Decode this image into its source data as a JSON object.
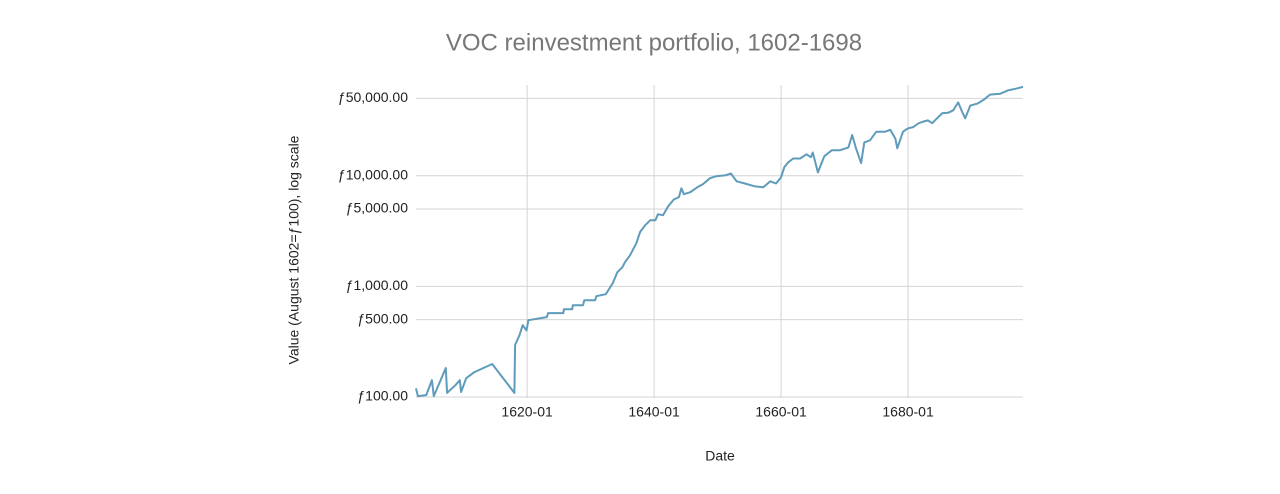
{
  "chart_data": {
    "type": "line",
    "title": "VOC reinvestment portfolio, 1602-1698",
    "x_label": "Date",
    "y_label": "Value (August 1602=ƒ100), log scale",
    "color": "#5f9bba",
    "log_y": true,
    "grid": true,
    "xlim": [
      1602.5,
      1698.1
    ],
    "ylim": [
      98,
      66000
    ],
    "xticks": [
      {
        "value": 1620,
        "label": "1620-01"
      },
      {
        "value": 1640,
        "label": "1640-01"
      },
      {
        "value": 1660,
        "label": "1660-01"
      },
      {
        "value": 1680,
        "label": "1680-01"
      }
    ],
    "yticks": [
      {
        "value": 100,
        "label": "ƒ100.00"
      },
      {
        "value": 500,
        "label": "ƒ500.00"
      },
      {
        "value": 1000,
        "label": "ƒ1,000.00"
      },
      {
        "value": 5000,
        "label": "ƒ5,000.00"
      },
      {
        "value": 10000,
        "label": "ƒ10,000.00"
      },
      {
        "value": 50000,
        "label": "ƒ50,000.00"
      }
    ],
    "x": [
      1602.5,
      1602.8,
      1604.1,
      1605,
      1605.3,
      1607.2,
      1607.4,
      1608.7,
      1609.4,
      1609.6,
      1610.4,
      1611.7,
      1614.5,
      1618,
      1618.1,
      1618.8,
      1619.3,
      1619.9,
      1620.2,
      1623.1,
      1623.3,
      1625.7,
      1625.8,
      1627.1,
      1627.2,
      1628.8,
      1629,
      1630.7,
      1630.9,
      1632.4,
      1633.5,
      1634.2,
      1635,
      1635.4,
      1636.2,
      1637.2,
      1637.8,
      1638.6,
      1639.4,
      1640.2,
      1640.6,
      1641.4,
      1642.2,
      1643.1,
      1643.9,
      1644.3,
      1644.7,
      1645.7,
      1646.8,
      1647.7,
      1648.8,
      1649.8,
      1651.3,
      1652.1,
      1653,
      1654.3,
      1655.9,
      1657.2,
      1658.3,
      1659.2,
      1660,
      1660.5,
      1661.1,
      1661.9,
      1663,
      1664,
      1664.7,
      1665,
      1665.8,
      1666.8,
      1668,
      1669.3,
      1670.6,
      1671.2,
      1671.8,
      1672.6,
      1673.1,
      1674,
      1675,
      1676.4,
      1677.2,
      1678,
      1678.3,
      1679.2,
      1680,
      1680.8,
      1681.6,
      1682.4,
      1683.1,
      1683.8,
      1684.4,
      1685.4,
      1686.3,
      1687.1,
      1687.9,
      1688.5,
      1689,
      1689.8,
      1691,
      1692,
      1692.9,
      1694.5,
      1695.7,
      1696.9,
      1698.1
    ],
    "values": [
      120,
      102,
      104,
      142,
      102,
      183,
      109,
      128,
      142,
      111,
      148,
      168,
      199,
      109,
      295,
      363,
      446,
      400,
      495,
      528,
      573,
      573,
      622,
      622,
      676,
      676,
      750,
      750,
      815,
      850,
      1070,
      1340,
      1490,
      1650,
      1910,
      2450,
      3100,
      3570,
      3960,
      3960,
      4490,
      4400,
      5280,
      6100,
      6400,
      7700,
      6800,
      7100,
      7860,
      8400,
      9500,
      9900,
      10100,
      10500,
      8900,
      8500,
      8000,
      7860,
      8900,
      8500,
      9700,
      11900,
      13200,
      14300,
      14300,
      15600,
      14700,
      16200,
      10700,
      15000,
      17000,
      17000,
      18000,
      23300,
      17700,
      13000,
      20000,
      20900,
      25000,
      25000,
      26000,
      21600,
      17700,
      25000,
      26800,
      27500,
      29600,
      30800,
      31600,
      29800,
      32300,
      36800,
      37000,
      39000,
      46000,
      38000,
      33000,
      43000,
      45000,
      49000,
      54000,
      55000,
      59000,
      61000,
      63500
    ]
  }
}
